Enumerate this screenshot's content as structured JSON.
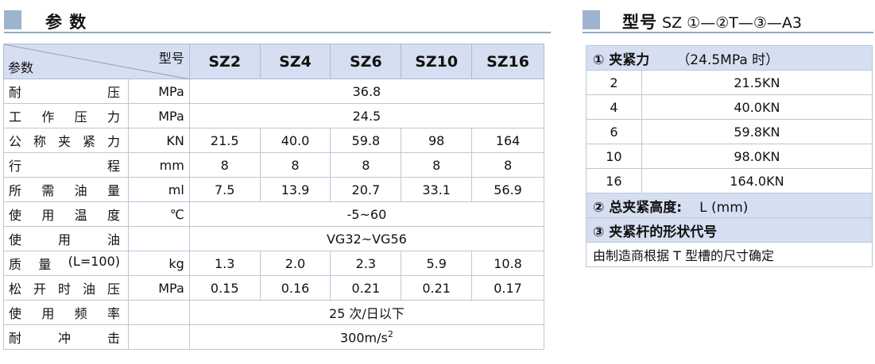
{
  "left": {
    "title": "参 数",
    "corner_top": "型号",
    "corner_bottom": "参数",
    "models": [
      "SZ2",
      "SZ4",
      "SZ6",
      "SZ10",
      "SZ16"
    ],
    "rows": [
      {
        "label": [
          "耐",
          "压"
        ],
        "unit": "MPa",
        "merged": "36.8"
      },
      {
        "label": [
          "工",
          "作",
          "压",
          "力"
        ],
        "unit": "MPa",
        "merged": "24.5"
      },
      {
        "label": [
          "公",
          "称",
          "夹",
          "紧",
          "力"
        ],
        "unit": "KN",
        "values": [
          "21.5",
          "40.0",
          "59.8",
          "98",
          "164"
        ]
      },
      {
        "label": [
          "行",
          "程"
        ],
        "unit": "mm",
        "values": [
          "8",
          "8",
          "8",
          "8",
          "8"
        ]
      },
      {
        "label": [
          "所",
          "需",
          "油",
          "量"
        ],
        "unit": "ml",
        "values": [
          "7.5",
          "13.9",
          "20.7",
          "33.1",
          "56.9"
        ]
      },
      {
        "label": [
          "使",
          "用",
          "温",
          "度"
        ],
        "unit": "℃",
        "merged": "-5~60"
      },
      {
        "label": [
          "使",
          "用",
          "油"
        ],
        "unit": "",
        "merged": "VG32~VG56"
      },
      {
        "label": [
          "质",
          "量",
          "(L=100)"
        ],
        "unit": "kg",
        "values": [
          "1.3",
          "2.0",
          "2.3",
          "5.9",
          "10.8"
        ]
      },
      {
        "label": [
          "松",
          "开",
          "时",
          "油",
          "压"
        ],
        "unit": "MPa",
        "values": [
          "0.15",
          "0.16",
          "0.21",
          "0.21",
          "0.17"
        ]
      },
      {
        "label": [
          "使",
          "用",
          "频",
          "率"
        ],
        "unit": "",
        "merged": "25 次/日以下"
      },
      {
        "label": [
          "耐",
          "冲",
          "击"
        ],
        "unit": "",
        "merged": "300m/s",
        "merged_sup": "2"
      }
    ]
  },
  "right": {
    "title_bold": "型号",
    "title_rest": " SZ ①—②T—③—A3",
    "header1_bold": "① 夹紧力",
    "header1_rest": "（24.5MPa 时）",
    "rows": [
      {
        "n": "2",
        "v": "21.5KN"
      },
      {
        "n": "4",
        "v": "40.0KN"
      },
      {
        "n": "6",
        "v": "59.8KN"
      },
      {
        "n": "10",
        "v": "98.0KN"
      },
      {
        "n": "16",
        "v": "164.0KN"
      }
    ],
    "header2_bold": "② 总夹紧高度:",
    "header2_rest": "L (mm)",
    "header3": "③ 夹紧杆的形状代号",
    "note": "由制造商根据 T 型槽的尺寸确定"
  }
}
